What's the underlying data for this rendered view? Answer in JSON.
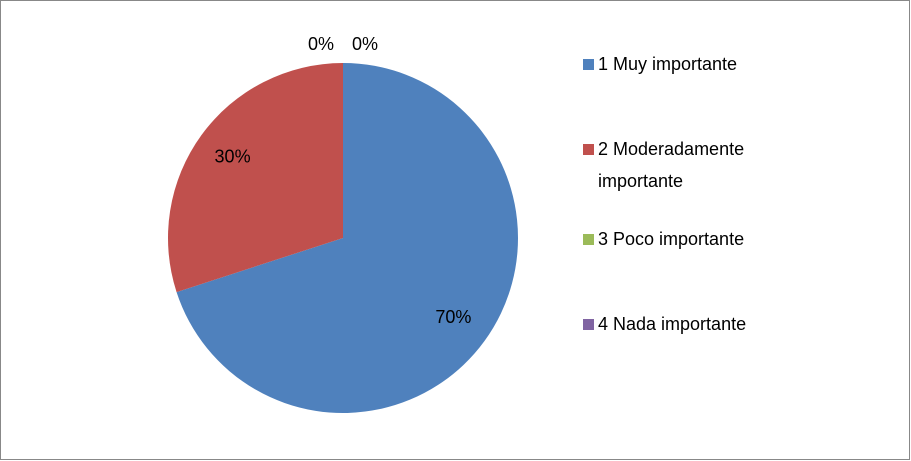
{
  "chart_data": {
    "type": "pie",
    "categories": [
      "1 Muy importante",
      "2 Moderadamente importante",
      "3 Poco importante",
      "4 Nada importante"
    ],
    "values": [
      70,
      30,
      0,
      0
    ],
    "value_labels": [
      "70%",
      "30%",
      "0%",
      "0%"
    ],
    "colors": [
      "#4f81bd",
      "#c0504d",
      "#9bbb59",
      "#8064a2"
    ],
    "legend": "right"
  }
}
